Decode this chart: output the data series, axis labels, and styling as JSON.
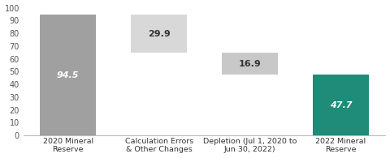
{
  "categories": [
    "2020 Mineral\nReserve",
    "Calculation Errors\n& Other Changes",
    "Depletion (Jul 1, 2020 to\nJun 30, 2022)",
    "2022 Mineral\nReserve"
  ],
  "values": [
    94.5,
    29.9,
    16.9,
    47.7
  ],
  "bar_tops": [
    94.5,
    94.5,
    64.6,
    47.7
  ],
  "bar_bottoms": [
    0,
    64.6,
    47.7,
    0
  ],
  "bar_colors": [
    "#a0a0a0",
    "#d8d8d8",
    "#c8c8c8",
    "#1e8c78"
  ],
  "label_colors": [
    "white",
    "#333333",
    "#333333",
    "white"
  ],
  "label_fontstyle": [
    "italic",
    "normal",
    "normal",
    "italic"
  ],
  "ylim": [
    0,
    100
  ],
  "yticks": [
    0,
    10,
    20,
    30,
    40,
    50,
    60,
    70,
    80,
    90,
    100
  ],
  "label_fontsize": 8.0,
  "tick_fontsize": 7.0,
  "xlabel_fontsize": 6.8,
  "background_color": "#ffffff",
  "bar_width": 0.62
}
